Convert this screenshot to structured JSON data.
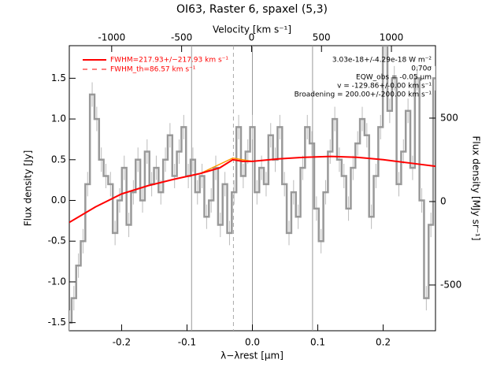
{
  "chart_data": {
    "type": "step",
    "title": "OI63, Raster 6, spaxel (5,3)",
    "x_label": "λ−λrest [μm]",
    "y_label": "Flux density [Jy]",
    "x2_label": "Velocity [km s⁻¹]",
    "y2_label": "Flux density [MJy sr⁻¹]",
    "xlim": [
      -0.28,
      0.28
    ],
    "ylim": [
      -1.6,
      1.9
    ],
    "x2lim": [
      -1303,
      1315
    ],
    "y2lim": [
      -774,
      934
    ],
    "xticks": [
      -0.2,
      -0.1,
      {
        "value": 0,
        "label": "0.0"
      },
      0.1,
      0.2
    ],
    "yticks": [
      -1.5,
      {
        "value": -1,
        "label": "-1.0"
      },
      -0.5,
      {
        "value": 0,
        "label": "0.0"
      },
      0.5,
      {
        "value": 1,
        "label": "1.0"
      },
      1.5
    ],
    "x2ticks": [
      -1000,
      -500,
      0,
      500,
      1000
    ],
    "y2ticks": [
      -500,
      0,
      500
    ],
    "x": [
      -0.28,
      -0.273,
      -0.266,
      -0.259,
      -0.252,
      -0.245,
      -0.238,
      -0.231,
      -0.224,
      -0.217,
      -0.21,
      -0.203,
      -0.196,
      -0.189,
      -0.182,
      -0.175,
      -0.168,
      -0.161,
      -0.154,
      -0.147,
      -0.14,
      -0.133,
      -0.126,
      -0.119,
      -0.112,
      -0.105,
      -0.098,
      -0.091,
      -0.084,
      -0.077,
      -0.07,
      -0.063,
      -0.056,
      -0.049,
      -0.042,
      -0.035,
      -0.028,
      -0.021,
      -0.014,
      -0.007,
      0,
      0.007,
      0.014,
      0.021,
      0.028,
      0.035,
      0.042,
      0.049,
      0.056,
      0.063,
      0.07,
      0.077,
      0.084,
      0.091,
      0.098,
      0.105,
      0.112,
      0.119,
      0.126,
      0.133,
      0.14,
      0.147,
      0.154,
      0.161,
      0.168,
      0.175,
      0.182,
      0.189,
      0.196,
      0.203,
      0.21,
      0.217,
      0.224,
      0.231,
      0.238,
      0.245,
      0.252,
      0.259,
      0.266,
      0.273,
      0.28
    ],
    "values": [
      -1.5,
      -1.2,
      -0.8,
      -0.5,
      0.2,
      1.3,
      1.0,
      0.5,
      0.3,
      0.2,
      -0.4,
      0.0,
      0.4,
      -0.3,
      0.1,
      0.5,
      0.0,
      0.6,
      0.2,
      0.4,
      0.1,
      0.5,
      0.8,
      0.3,
      0.6,
      0.9,
      0.3,
      0.5,
      0.1,
      0.3,
      -0.2,
      0.0,
      0.4,
      -0.3,
      0.2,
      -0.4,
      0.1,
      0.9,
      0.3,
      0.6,
      0.9,
      0.1,
      0.4,
      0.2,
      0.8,
      0.5,
      0.9,
      0.2,
      -0.4,
      0.1,
      -0.2,
      0.4,
      0.9,
      0.7,
      -0.1,
      -0.5,
      0.1,
      0.6,
      1.0,
      0.5,
      0.3,
      -0.1,
      0.4,
      0.7,
      1.0,
      0.8,
      -0.2,
      0.3,
      0.9,
      1.9,
      1.1,
      1.5,
      0.2,
      0.6,
      1.1,
      0.4,
      1.5,
      0.0,
      -1.2,
      -0.3,
      1.5
    ],
    "errors": [
      0.15,
      0.15,
      0.15,
      0.15,
      0.15,
      0.15,
      0.15,
      0.15,
      0.15,
      0.15,
      0.15,
      0.15,
      0.15,
      0.15,
      0.15,
      0.15,
      0.15,
      0.15,
      0.15,
      0.15,
      0.15,
      0.15,
      0.15,
      0.15,
      0.15,
      0.15,
      0.15,
      0.15,
      0.15,
      0.15,
      0.15,
      0.15,
      0.15,
      0.15,
      0.15,
      0.15,
      0.15,
      0.15,
      0.15,
      0.15,
      0.15,
      0.15,
      0.15,
      0.15,
      0.15,
      0.15,
      0.15,
      0.15,
      0.15,
      0.15,
      0.15,
      0.15,
      0.15,
      0.15,
      0.15,
      0.15,
      0.15,
      0.15,
      0.15,
      0.15,
      0.15,
      0.15,
      0.15,
      0.15,
      0.15,
      0.15,
      0.15,
      0.15,
      0.15,
      0.15,
      0.15,
      0.15,
      0.15,
      0.15,
      0.15,
      0.15,
      0.15,
      0.15,
      0.15,
      0.15,
      0.15
    ],
    "color": "#999999",
    "fit": {
      "name": "FWHM=217.93+/−217.93 km s⁻¹",
      "color": "#ff0000",
      "x": [
        -0.28,
        -0.24,
        -0.2,
        -0.16,
        -0.12,
        -0.08,
        -0.05,
        -0.03,
        -0.015,
        0,
        0.04,
        0.08,
        0.12,
        0.16,
        0.2,
        0.24,
        0.28
      ],
      "values": [
        -0.27,
        -0.08,
        0.08,
        0.18,
        0.26,
        0.33,
        0.4,
        0.5,
        0.48,
        0.48,
        0.51,
        0.53,
        0.54,
        0.53,
        0.5,
        0.46,
        0.42
      ]
    },
    "fit_th": {
      "name": "FWHM_th=86.57 km s⁻¹",
      "color": "#ff0000"
    },
    "line_fit": {
      "color": "#ff9900",
      "x": [
        -0.08,
        -0.03,
        0.0
      ],
      "values": [
        0.33,
        0.52,
        0.48
      ]
    },
    "vlines": [
      -0.093,
      0,
      0.092
    ],
    "dashed_vlines": [
      -0.029
    ],
    "annotations": [
      "3.03e-18+/-4.29e-18 W m⁻²",
      "0.70σ",
      "EQW_obs = -0.05 μm",
      "v = -129.86+/-0.00 km s⁻¹",
      "Broadening = 200.00+/-200.00 km s⁻¹"
    ]
  }
}
